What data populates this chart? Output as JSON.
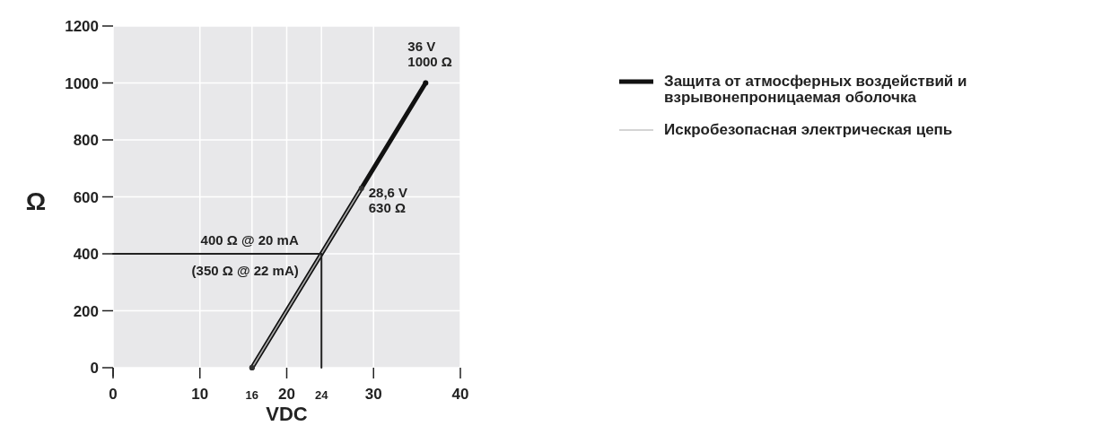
{
  "chart_data": {
    "type": "line",
    "xlabel": "VDC",
    "ylabel": "Ω",
    "xlim": [
      0,
      40
    ],
    "ylim": [
      0,
      1200
    ],
    "xticks": [
      0,
      10,
      16,
      20,
      24,
      30,
      40
    ],
    "yticks": [
      0,
      200,
      400,
      600,
      800,
      1000,
      1200
    ],
    "grid": true,
    "legend": "right",
    "marker": "circle",
    "line_style": "solid",
    "series": [
      {
        "name": "Защита от атмосферных воздействий и взрывонепроницаемая оболочка",
        "color": "#111111",
        "x": [
          16,
          36
        ],
        "values": [
          0,
          1000
        ]
      },
      {
        "name": "Искробезопасная электрическая цепь",
        "color": "#aaaaaa",
        "x": [
          16,
          28.6
        ],
        "values": [
          0,
          630
        ]
      },
      {
        "color": "#222222",
        "x": [
          0,
          24,
          24
        ],
        "values": [
          400,
          400,
          0
        ],
        "marker": "none"
      }
    ],
    "annotations": [
      {
        "text": "36 V\n1000 Ω",
        "x": 36,
        "y": 1000
      },
      {
        "text": "28,6 V\n630 Ω",
        "x": 28.6,
        "y": 630
      },
      {
        "text": "400 Ω @ 20 mA",
        "x": 24,
        "y": 400
      },
      {
        "text": "(350 Ω @ 22 mA)",
        "x": 24,
        "y": 400
      }
    ]
  }
}
